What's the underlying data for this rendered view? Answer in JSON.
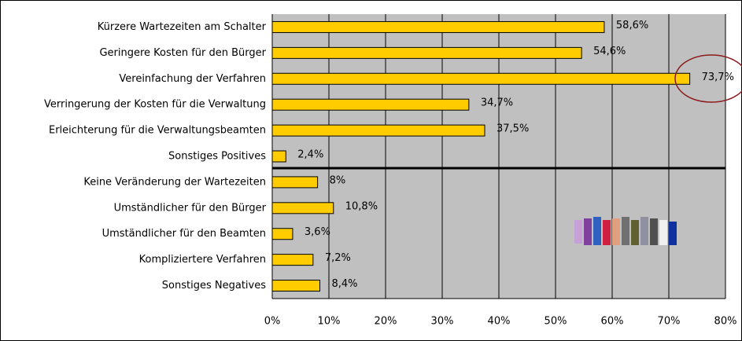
{
  "chart_data": {
    "type": "bar",
    "orientation": "horizontal",
    "categories": [
      "Kürzere Wartezeiten am Schalter",
      "Geringere Kosten für den Bürger",
      "Vereinfachung der Verfahren",
      "Verringerung der Kosten für die Verwaltung",
      "Erleichterung für die Verwaltungsbeamten",
      "Sonstiges Positives",
      "Keine Veränderung der Wartezeiten",
      "Umständlicher für den Bürger",
      "Umständlicher für den Beamten",
      "Kompliziertere Verfahren",
      "Sonstiges Negatives"
    ],
    "values": [
      58.6,
      54.6,
      73.7,
      34.7,
      37.5,
      2.4,
      8,
      10.8,
      3.6,
      7.2,
      8.4
    ],
    "value_labels": [
      "58,6%",
      "54,6%",
      "73,7%",
      "34,7%",
      "37,5%",
      "2,4%",
      "8%",
      "10,8%",
      "3,6%",
      "7,2%",
      "8,4%"
    ],
    "color": "#ffcc00",
    "xlim": [
      0,
      80
    ],
    "xticks": [
      {
        "value": 0,
        "label": "0%"
      },
      {
        "value": 10,
        "label": "10%"
      },
      {
        "value": 20,
        "label": "20%"
      },
      {
        "value": 30,
        "label": "30%"
      },
      {
        "value": 40,
        "label": "40%"
      },
      {
        "value": 50,
        "label": "50%"
      },
      {
        "value": 60,
        "label": "60%"
      },
      {
        "value": 70,
        "label": "70%"
      },
      {
        "value": 80,
        "label": "80%"
      }
    ],
    "grid": true
  }
}
